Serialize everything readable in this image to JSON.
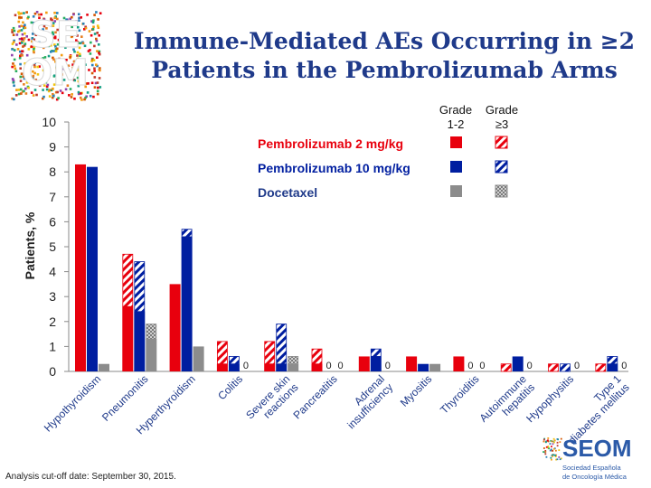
{
  "title": {
    "line1": "Immune-Mediated AEs Occurring in ≥2",
    "line2": "Patients in the Pembrolizumab Arms"
  },
  "logo": {
    "text": "SEOM",
    "row1": "SE",
    "row2": "OM"
  },
  "footer": {
    "text": "Analysis cut-off date: September 30, 2015."
  },
  "brand": {
    "name": "SEOM",
    "line1": "Sociedad Española",
    "line2": "de Oncología Médica"
  },
  "colors": {
    "pembro2": "#e8000d",
    "pembro10": "#001ea0",
    "docetaxel": "#8c8c8c",
    "title": "#1f3a8a",
    "brand": "#2b5aa8"
  },
  "chart_data": {
    "type": "bar",
    "ylabel": "Patients, %",
    "ylim": [
      0,
      10
    ],
    "yticks": [
      0,
      1,
      2,
      3,
      4,
      5,
      6,
      7,
      8,
      9,
      10
    ],
    "legend": {
      "header_grade12": "Grade 1-2",
      "header_grade3": "Grade ≥3",
      "grade12_line1": "Grade",
      "grade12_line2": "1-2",
      "grade3_line1": "Grade",
      "grade3_line2": "≥3",
      "entries": [
        "Pembrolizumab 2 mg/kg",
        "Pembrolizumab 10 mg/kg",
        "Docetaxel"
      ],
      "position": "top-right"
    },
    "categories": [
      "Hypothyroidism",
      "Pneumonitis",
      "Hyperthyroidism",
      "Colitis",
      "Severe skin reactions",
      "Pancreatitis",
      "Adrenal insufficiency",
      "Myositis",
      "Thyroiditis",
      "Autoimmune hepatitis",
      "Hypophysitis",
      "Type 1 diabetes mellitus"
    ],
    "category_lines": [
      [
        "Hypothyroidism"
      ],
      [
        "Pneumonitis"
      ],
      [
        "Hyperthyroidism"
      ],
      [
        "Colitis"
      ],
      [
        "Severe skin",
        "reactions"
      ],
      [
        "Pancreatitis"
      ],
      [
        "Adrenal",
        "insufficiency"
      ],
      [
        "Myositis"
      ],
      [
        "Thyroiditis"
      ],
      [
        "Autoimmune",
        "hepatitis"
      ],
      [
        "Hypophysitis"
      ],
      [
        "Type 1",
        "diabetes mellitus"
      ]
    ],
    "series": [
      {
        "name": "Pembrolizumab 2 mg/kg",
        "grade12": [
          8.3,
          2.6,
          3.5,
          0.3,
          0.3,
          0.3,
          0.6,
          0.6,
          0.6,
          0.0,
          0.0,
          0.0
        ],
        "grade3": [
          0.0,
          2.1,
          0.0,
          0.9,
          0.9,
          0.6,
          0.0,
          0.0,
          0.0,
          0.3,
          0.3,
          0.3
        ]
      },
      {
        "name": "Pembrolizumab 10 mg/kg",
        "grade12": [
          8.2,
          2.4,
          5.4,
          0.3,
          0.3,
          0.0,
          0.6,
          0.3,
          0.0,
          0.6,
          0.0,
          0.3
        ],
        "grade3": [
          0.0,
          2.0,
          0.3,
          0.3,
          1.6,
          0.0,
          0.3,
          0.0,
          0.0,
          0.0,
          0.3,
          0.3
        ]
      },
      {
        "name": "Docetaxel",
        "grade12": [
          0.3,
          1.3,
          1.0,
          0.0,
          0.3,
          0.0,
          0.0,
          0.3,
          0.0,
          0.0,
          0.0,
          0.0
        ],
        "grade3": [
          0.0,
          0.6,
          0.0,
          0.0,
          0.3,
          0.0,
          0.0,
          0.0,
          0.0,
          0.0,
          0.0,
          0.0
        ]
      }
    ],
    "zero_labels": [
      {
        "category": "Colitis",
        "series": "Docetaxel",
        "text": "0"
      },
      {
        "category": "Pancreatitis",
        "series": "Pembrolizumab 10 mg/kg",
        "text": "0"
      },
      {
        "category": "Pancreatitis",
        "series": "Docetaxel",
        "text": "0"
      },
      {
        "category": "Adrenal insufficiency",
        "series": "Docetaxel",
        "text": "0"
      },
      {
        "category": "Thyroiditis",
        "series": "Pembrolizumab 10 mg/kg",
        "text": "0"
      },
      {
        "category": "Thyroiditis",
        "series": "Docetaxel",
        "text": "0"
      },
      {
        "category": "Autoimmune hepatitis",
        "series": "Docetaxel",
        "text": "0"
      },
      {
        "category": "Hypophysitis",
        "series": "Docetaxel",
        "text": "0"
      },
      {
        "category": "Type 1 diabetes mellitus",
        "series": "Docetaxel",
        "text": "0"
      }
    ]
  }
}
